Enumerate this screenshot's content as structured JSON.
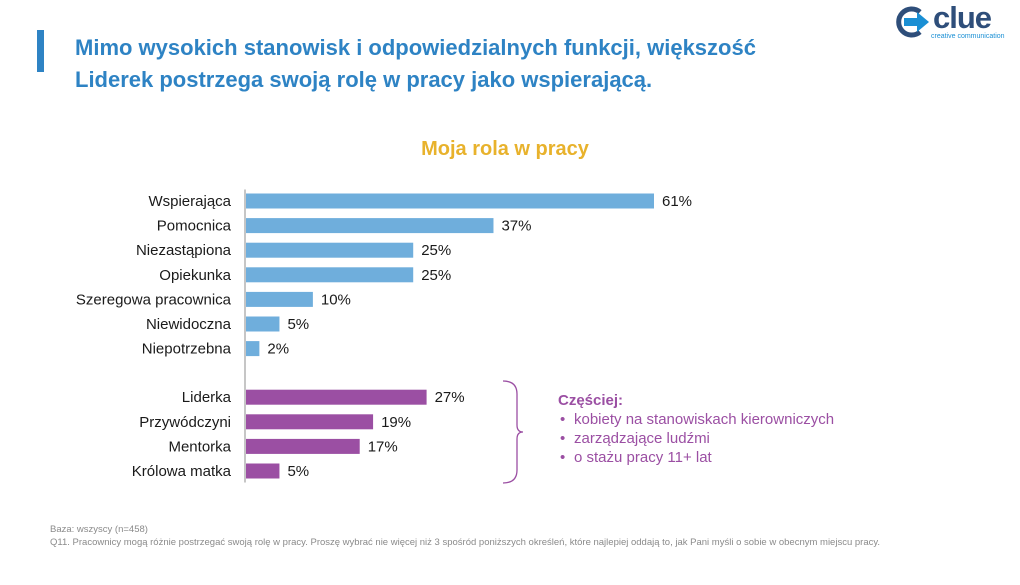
{
  "header": {
    "headline": "Mimo wysokich stanowisk i odpowiedzialnych funkcji, większość Liderek postrzega swoją rolę w pracy jako wspierającą."
  },
  "logo": {
    "name": "clue",
    "tagline": "creative communication"
  },
  "chart_data": {
    "type": "bar",
    "orientation": "horizontal",
    "title": "Moja rola w pracy",
    "xlabel": "",
    "ylabel": "",
    "value_suffix": "%",
    "xlim": [
      0,
      61
    ],
    "grid": false,
    "groups": [
      {
        "color": "#6faedc",
        "categories": [
          "Wspierająca",
          "Pomocnica",
          "Niezastąpiona",
          "Opiekunka",
          "Szeregowa pracownica",
          "Niewidoczna",
          "Niepotrzebna"
        ],
        "values": [
          61,
          37,
          25,
          25,
          10,
          5,
          2
        ]
      },
      {
        "color": "#9b4fa3",
        "categories": [
          "Liderka",
          "Przywódczyni",
          "Mentorka",
          "Królowa matka"
        ],
        "values": [
          27,
          19,
          17,
          5
        ]
      }
    ]
  },
  "note": {
    "title": "Częściej:",
    "items": [
      "kobiety na stanowiskach kierowniczych",
      "zarządzające ludźmi",
      "o stażu pracy 11+ lat"
    ]
  },
  "footer": {
    "base": "Baza: wszyscy (n=458)",
    "question": "Q11. Pracownicy mogą różnie postrzegać swoją rolę w pracy. Proszę wybrać nie więcej niż 3 spośród poniższych określeń, które najlepiej oddają to, jak Pani myśli o sobie w obecnym miejscu pracy."
  }
}
